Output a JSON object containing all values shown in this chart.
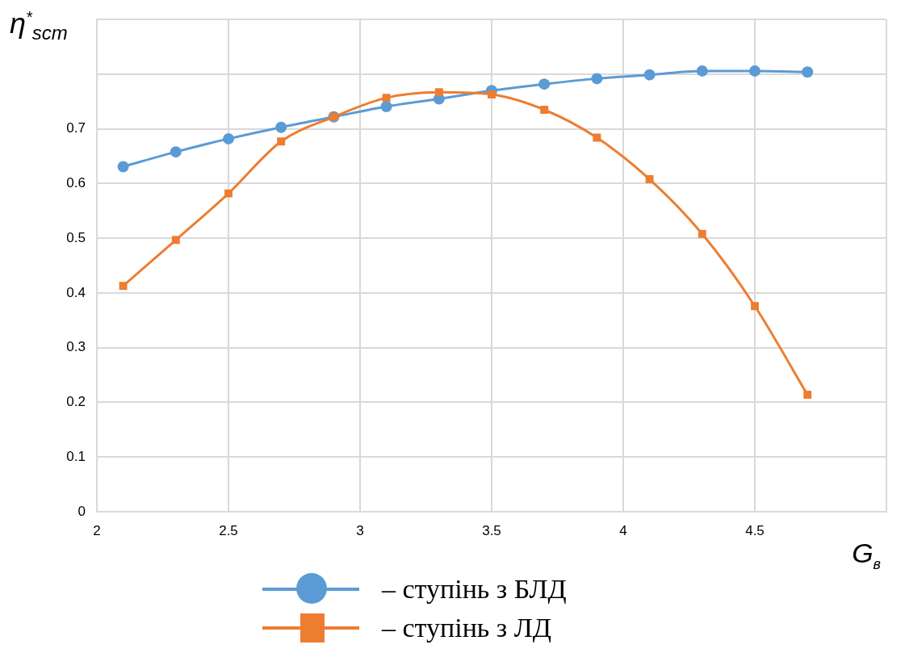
{
  "chart_data": {
    "type": "line",
    "xlabel": "G$_{в}$",
    "ylabel": "η$^{*}$$_{scm}$",
    "x": [
      2.1,
      2.3,
      2.5,
      2.7,
      2.9,
      3.1,
      3.3,
      3.5,
      3.7,
      3.9,
      4.1,
      4.3,
      4.5,
      4.7
    ],
    "series": [
      {
        "name": "– ступінь з БЛД",
        "color": "#5b9bd5",
        "marker": "circle",
        "values": [
          0.631,
          0.658,
          0.682,
          0.703,
          0.722,
          0.741,
          0.755,
          0.77,
          0.782,
          0.792,
          0.799,
          0.806,
          0.806,
          0.804
        ]
      },
      {
        "name": "– ступінь з ЛД",
        "color": "#ed7d31",
        "marker": "square",
        "values": [
          0.413,
          0.497,
          0.582,
          0.677,
          0.722,
          0.757,
          0.767,
          0.763,
          0.735,
          0.684,
          0.608,
          0.508,
          0.376,
          0.214
        ]
      }
    ],
    "xlim": [
      2,
      5
    ],
    "xticks": [
      2,
      2.5,
      3,
      3.5,
      4,
      4.5,
      {
        "value": 5,
        "label": null
      }
    ],
    "ylim": [
      0,
      0.9
    ],
    "yticks": [
      0,
      0.1,
      0.2,
      0.3,
      0.4,
      0.5,
      0.6,
      0.7,
      {
        "value": 0.8,
        "label": null
      },
      {
        "value": 0.9,
        "label": null
      }
    ],
    "grid": true,
    "legend": "bottom"
  }
}
